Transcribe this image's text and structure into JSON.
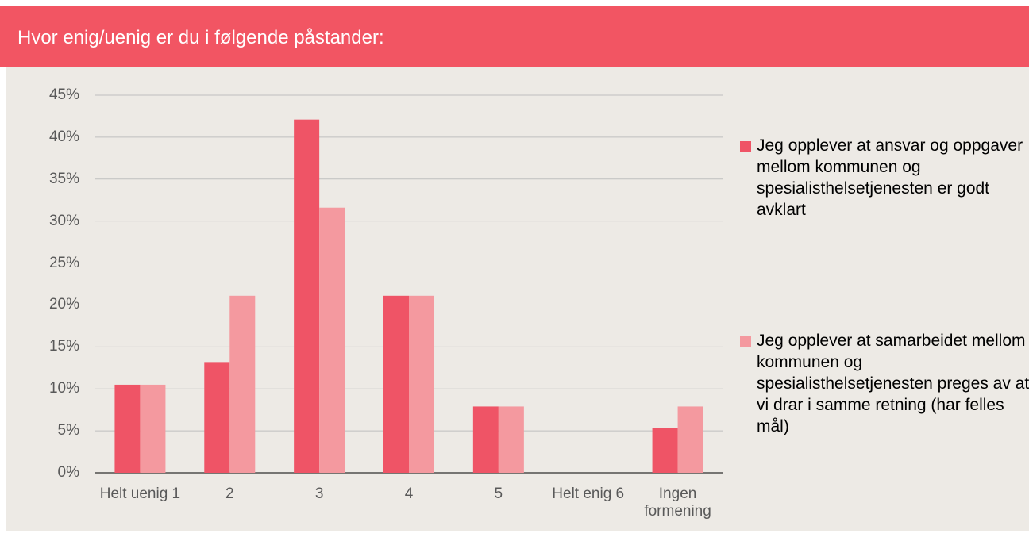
{
  "header": {
    "title": "Hvor enig/uenig er du i følgende påstander:"
  },
  "chart_data": {
    "type": "bar",
    "categories": [
      "Helt uenig 1",
      "2",
      "3",
      "4",
      "5",
      "Helt enig 6",
      "Ingen formening"
    ],
    "series": [
      {
        "name": "Jeg opplever at ansvar og oppgaver mellom kommunen og spesialisthelsetjenesten er godt avklart",
        "color": "#ef5466",
        "values": [
          10.5,
          13.2,
          42.1,
          21.1,
          7.9,
          0,
          5.3
        ]
      },
      {
        "name": "Jeg opplever at samarbeidet mellom kommunen og spesialisthelsetjenesten preges av at vi drar i samme retning (har felles mål)",
        "color": "#f4999f",
        "values": [
          10.5,
          21.1,
          31.6,
          21.1,
          7.9,
          0,
          7.9
        ]
      }
    ],
    "ylim": [
      0,
      45
    ],
    "yticks": [
      {
        "value": 0,
        "label": "0%"
      },
      {
        "value": 5,
        "label": "5%"
      },
      {
        "value": 10,
        "label": "10%"
      },
      {
        "value": 15,
        "label": "15%"
      },
      {
        "value": 20,
        "label": "20%"
      },
      {
        "value": 25,
        "label": "25%"
      },
      {
        "value": 30,
        "label": "30%"
      },
      {
        "value": 35,
        "label": "35%"
      },
      {
        "value": 40,
        "label": "40%"
      },
      {
        "value": 45,
        "label": "45%"
      }
    ],
    "grid": true,
    "legend": "right"
  }
}
